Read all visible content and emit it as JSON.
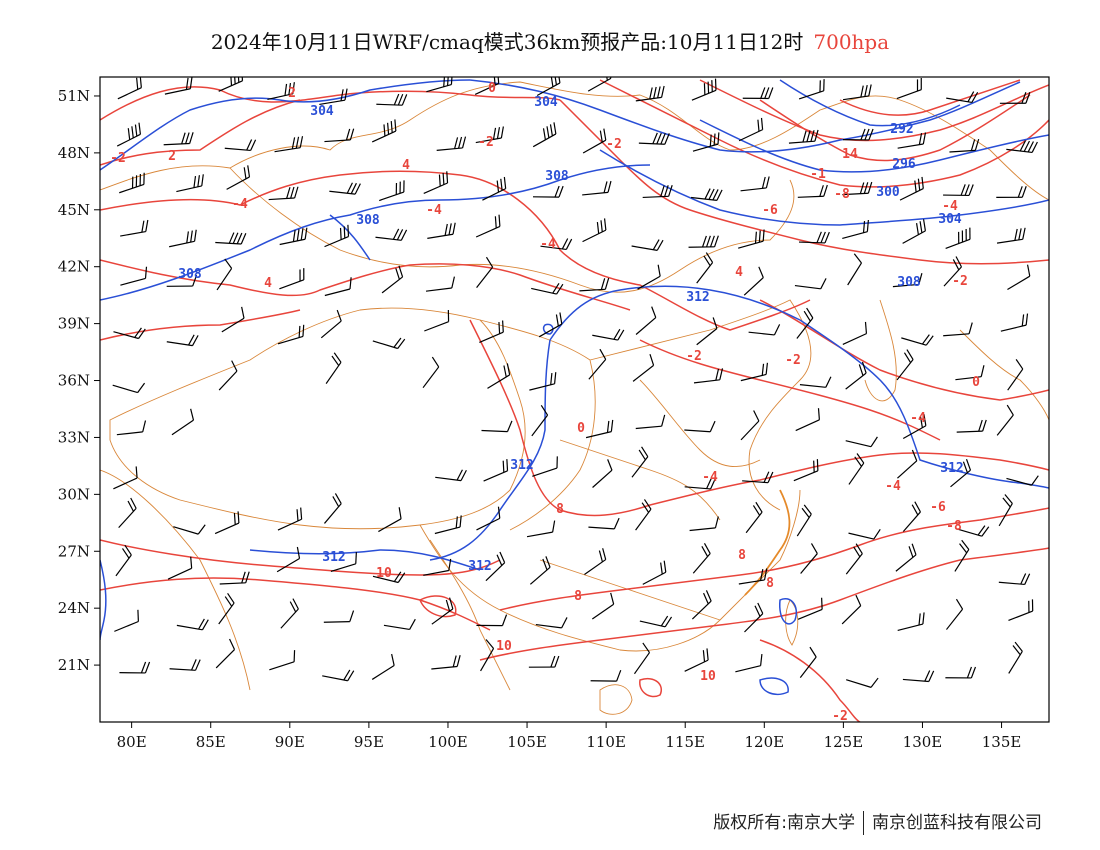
{
  "title": {
    "main": "2024年10月11日WRF/cmaq模式36km预报产品:10月11日12时",
    "level": "700hpa"
  },
  "map": {
    "lon_range": [
      78,
      138
    ],
    "lat_range": [
      18,
      52
    ],
    "x_ticks": [
      "80E",
      "85E",
      "90E",
      "95E",
      "100E",
      "105E",
      "110E",
      "115E",
      "120E",
      "125E",
      "130E",
      "135E"
    ],
    "y_ticks": [
      "51N",
      "48N",
      "45N",
      "42N",
      "39N",
      "36N",
      "33N",
      "30N",
      "27N",
      "24N",
      "21N"
    ],
    "colors": {
      "temperature": "#e8453c",
      "height": "#2a4fd6",
      "boundary": "#d9873a",
      "wind": "#000000"
    },
    "temperature_labels": [
      "2",
      "2",
      "0",
      "-2",
      "-2",
      "14",
      "-1",
      "-8",
      "-6",
      "-4",
      "-4",
      "-4",
      "-4",
      "4",
      "4",
      "4",
      "-2",
      "-2",
      "-2",
      "-2",
      "0",
      "0",
      "-4",
      "-4",
      "-6",
      "-8",
      "8",
      "8",
      "10",
      "10",
      "10",
      "8",
      "8",
      "-4",
      "-2"
    ],
    "height_labels": [
      "304",
      "304",
      "292",
      "296",
      "300",
      "304",
      "308",
      "308",
      "308",
      "312",
      "308",
      "312",
      "312",
      "312",
      "312"
    ]
  },
  "footer": {
    "left": "版权所有:南京大学",
    "right": "南京创蓝科技有限公司"
  }
}
